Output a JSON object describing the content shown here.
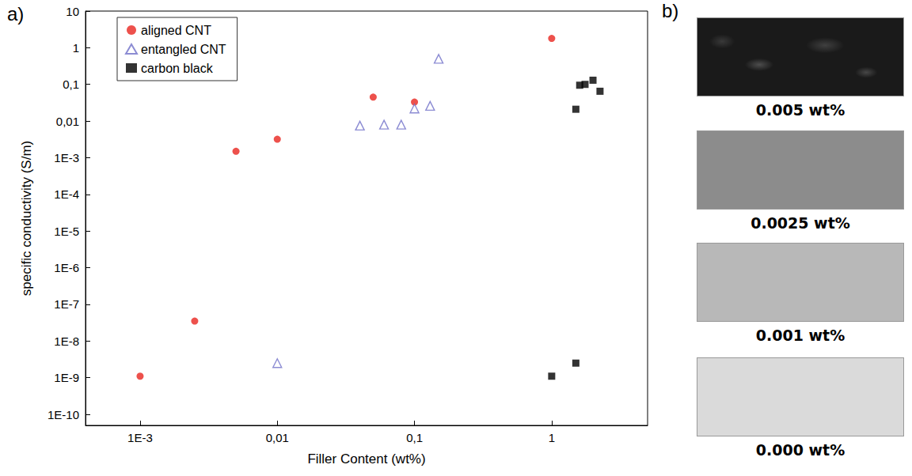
{
  "chart_data": {
    "type": "scatter",
    "title": "a)",
    "x_label": "Filler Content (wt%)",
    "y_label": "specific conductivity (S/m)",
    "log": true,
    "grid": false,
    "legend": "upper left",
    "xlim": [
      0.0004,
      5
    ],
    "xticks": [
      {
        "value": 0.001,
        "label": "1E-3"
      },
      {
        "value": 0.01,
        "label": "0,01"
      },
      {
        "value": 0.1,
        "label": "0,1"
      },
      1
    ],
    "ylim": [
      5e-11,
      10
    ],
    "yticks": [
      {
        "value": 1e-10,
        "label": "1E-10"
      },
      {
        "value": 1e-09,
        "label": "1E-9"
      },
      {
        "value": 1e-08,
        "label": "1E-8"
      },
      {
        "value": 1e-07,
        "label": "1E-7"
      },
      {
        "value": 1e-06,
        "label": "1E-6"
      },
      {
        "value": 1e-05,
        "label": "1E-5"
      },
      {
        "value": 0.0001,
        "label": "1E-4"
      },
      {
        "value": 0.001,
        "label": "1E-3"
      },
      {
        "value": 0.01,
        "label": "0,01"
      },
      {
        "value": 0.1,
        "label": "0,1"
      },
      1,
      10
    ],
    "series": [
      {
        "name": "aligned CNT",
        "color": "#e8261f",
        "marker": "circle",
        "x": [
          0.001,
          0.0025,
          0.005,
          0.01,
          0.05,
          0.1,
          1
        ],
        "values": [
          1.1e-09,
          3.5e-08,
          0.0015,
          0.0032,
          0.045,
          0.033,
          1.8
        ]
      },
      {
        "name": "entangled CNT",
        "color": "#6f6fc8",
        "marker": "open-triangle",
        "x": [
          0.01,
          0.04,
          0.06,
          0.08,
          0.1,
          0.13,
          0.15
        ],
        "values": [
          2.5e-09,
          0.0075,
          0.008,
          0.008,
          0.022,
          0.026,
          0.5
        ]
      },
      {
        "name": "carbon black",
        "color": "#000000",
        "marker": "square",
        "x": [
          1,
          1.5,
          1.5,
          1.6,
          1.75,
          2,
          2.25
        ],
        "values": [
          1.1e-09,
          2.5e-09,
          0.021,
          0.095,
          0.1,
          0.13,
          0.065
        ]
      }
    ]
  },
  "panel_b": {
    "title": "b)",
    "samples": [
      {
        "label": "0.005 wt%",
        "color": "#1a1a1a"
      },
      {
        "label": "0.0025 wt%",
        "color": "#8c8c8c"
      },
      {
        "label": "0.001 wt%",
        "color": "#b8b8b8"
      },
      {
        "label": "0.000 wt%",
        "color": "#dadada"
      }
    ]
  }
}
